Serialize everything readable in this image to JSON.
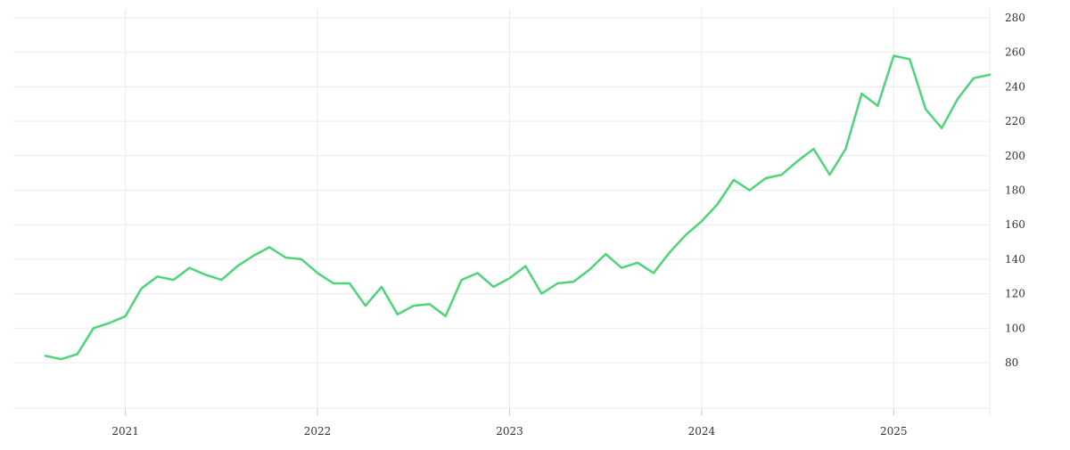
{
  "chart_data": {
    "type": "line",
    "title": "",
    "xlabel": "",
    "ylabel": "",
    "x_tick_labels": [
      "2021",
      "2022",
      "2023",
      "2024",
      "2025"
    ],
    "y_tick_labels": [
      "80",
      "100",
      "120",
      "140",
      "160",
      "180",
      "200",
      "220",
      "240",
      "260",
      "280"
    ],
    "ylim": [
      55,
      285
    ],
    "xlim": [
      "2020-06",
      "2025-07"
    ],
    "grid": true,
    "legend": "none",
    "colors": {
      "line": "#4fd47a",
      "grid": "#ebebeb",
      "axis": "#cccccc",
      "text": "#333333"
    },
    "series": [
      {
        "x": [
          "2020-08",
          "2020-09",
          "2020-10",
          "2020-11",
          "2020-12",
          "2021-01",
          "2021-02",
          "2021-03",
          "2021-04",
          "2021-05",
          "2021-06",
          "2021-07",
          "2021-08",
          "2021-09",
          "2021-10",
          "2021-11",
          "2021-12",
          "2022-01",
          "2022-02",
          "2022-03",
          "2022-04",
          "2022-05",
          "2022-06",
          "2022-07",
          "2022-08",
          "2022-09",
          "2022-10",
          "2022-11",
          "2022-12",
          "2023-01",
          "2023-02",
          "2023-03",
          "2023-04",
          "2023-05",
          "2023-06",
          "2023-07",
          "2023-08",
          "2023-09",
          "2023-10",
          "2023-11",
          "2023-12",
          "2024-01",
          "2024-02",
          "2024-03",
          "2024-04",
          "2024-05",
          "2024-06",
          "2024-07",
          "2024-08",
          "2024-09",
          "2024-10",
          "2024-11",
          "2024-12",
          "2025-01",
          "2025-02",
          "2025-03",
          "2025-04",
          "2025-05",
          "2025-06",
          "2025-07"
        ],
        "values": [
          84,
          82,
          85,
          100,
          103,
          107,
          123,
          130,
          128,
          135,
          131,
          128,
          136,
          142,
          147,
          141,
          140,
          132,
          126,
          126,
          113,
          124,
          108,
          113,
          114,
          107,
          128,
          132,
          124,
          129,
          136,
          120,
          126,
          127,
          134,
          143,
          135,
          138,
          132,
          144,
          154,
          162,
          172,
          186,
          180,
          187,
          189,
          197,
          204,
          189,
          204,
          236,
          229,
          258,
          256,
          227,
          216,
          233,
          245,
          247
        ]
      }
    ]
  }
}
